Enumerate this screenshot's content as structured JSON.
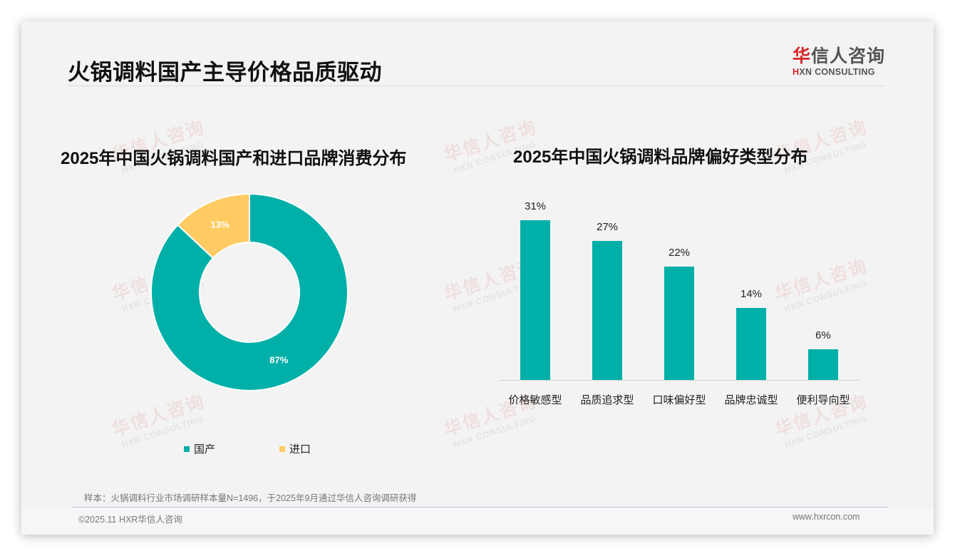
{
  "slide": {
    "title": "火锅调料国产主导价格品质驱动",
    "logo": {
      "cn_red": "华",
      "cn_rest": "信人咨询",
      "en_mark": "H",
      "en_rest": "XN CONSULTING"
    },
    "watermark": {
      "cn": "华信人咨询",
      "en": "HXN CONSULTING"
    }
  },
  "colors": {
    "primary": "#00b0a8",
    "secondary": "#ffcb62",
    "logo_red": "#d7262c",
    "background": "#f3f3f3"
  },
  "left_chart": {
    "title": "2025年中国火锅调料国产和进口品牌消费分布",
    "legend": [
      {
        "label": "国产",
        "color": "#00b0a8"
      },
      {
        "label": "进口",
        "color": "#ffcb62"
      }
    ],
    "labels": {
      "domestic": "87%",
      "imported": "13%"
    }
  },
  "right_chart": {
    "title": "2025年中国火锅调料品牌偏好类型分布",
    "bars": [
      {
        "category": "价格敏感型",
        "value_label": "31%"
      },
      {
        "category": "品质追求型",
        "value_label": "27%"
      },
      {
        "category": "口味偏好型",
        "value_label": "22%"
      },
      {
        "category": "品牌忠诚型",
        "value_label": "14%"
      },
      {
        "category": "便利导向型",
        "value_label": "6%"
      }
    ]
  },
  "footer": {
    "source": "样本：火锅调料行业市场调研样本量N=1496，于2025年9月通过华信人咨询调研获得",
    "copyright": "©2025.11 HXR华信人咨询",
    "website": "www.hxrcon.com"
  },
  "chart_data": [
    {
      "type": "pie",
      "title": "2025年中国火锅调料国产和进口品牌消费分布",
      "categories": [
        "国产",
        "进口"
      ],
      "values": [
        87,
        13
      ],
      "unit": "%",
      "donut": true,
      "colors": [
        "#00b0a8",
        "#ffcb62"
      ],
      "legend_position": "bottom"
    },
    {
      "type": "bar",
      "title": "2025年中国火锅调料品牌偏好类型分布",
      "categories": [
        "价格敏感型",
        "品质追求型",
        "口味偏好型",
        "品牌忠诚型",
        "便利导向型"
      ],
      "values": [
        31,
        27,
        22,
        14,
        6
      ],
      "unit": "%",
      "xlabel": "",
      "ylabel": "",
      "ylim": [
        0,
        31
      ],
      "grid": false,
      "color": "#00b0a8"
    }
  ]
}
